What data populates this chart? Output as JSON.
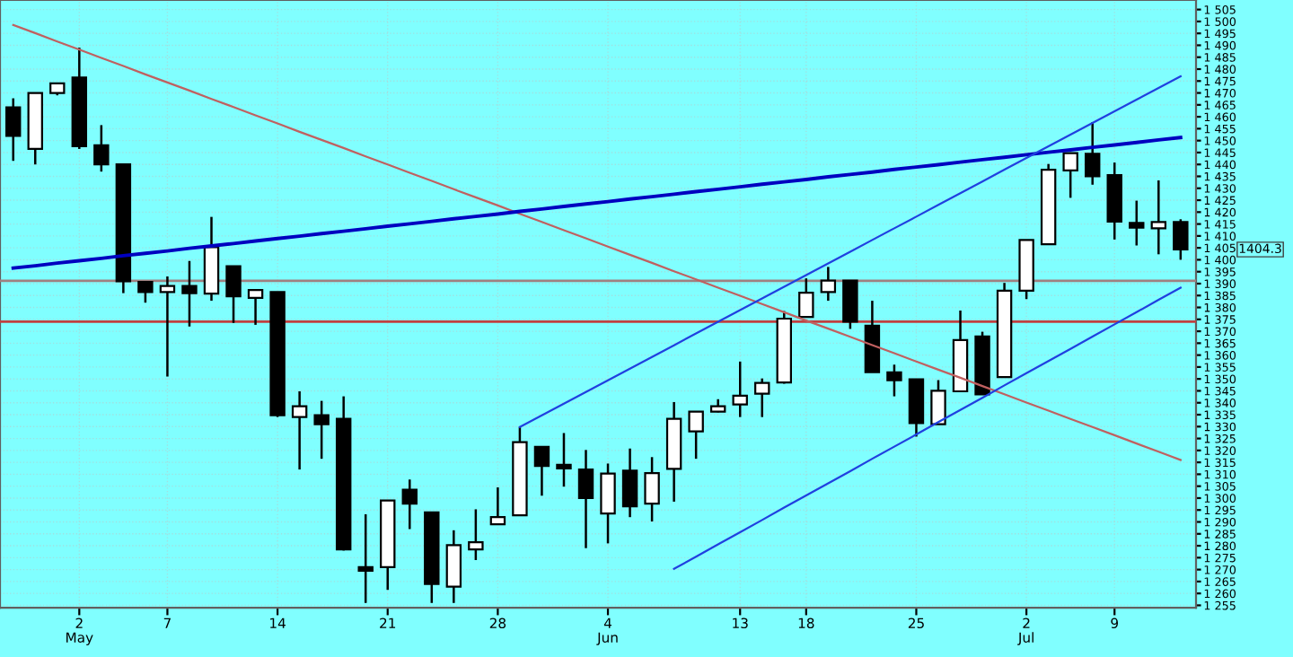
{
  "chart_data": {
    "type": "candlestick",
    "categories": [
      null,
      null,
      null,
      "2\nMay",
      null,
      null,
      null,
      "7",
      null,
      null,
      null,
      null,
      "14",
      null,
      null,
      null,
      null,
      "21",
      null,
      null,
      null,
      null,
      "28",
      null,
      null,
      null,
      null,
      "4\nJun",
      null,
      null,
      null,
      null,
      null,
      "13",
      null,
      null,
      "18",
      null,
      null,
      null,
      null,
      "25",
      null,
      null,
      null,
      null,
      "2\nJul",
      null,
      null,
      null,
      "9",
      null,
      null,
      null
    ],
    "ohlc": [
      [
        1464,
        1467.75,
        1441.5,
        1452
      ],
      [
        1446.5,
        1470,
        1440,
        1470
      ],
      [
        1470,
        1474,
        1469,
        1474
      ],
      [
        1476.5,
        1489,
        1446.5,
        1447.7
      ],
      [
        1448,
        1456.5,
        1437,
        1440
      ],
      [
        1440,
        1440,
        1386,
        1391
      ],
      [
        1390.7,
        1391,
        1382,
        1386.5
      ],
      [
        1386.5,
        1393,
        1351,
        1389
      ],
      [
        1389,
        1399.5,
        1372,
        1386
      ],
      [
        1385.8,
        1418,
        1382.8,
        1405.3
      ],
      [
        1397.3,
        1397.3,
        1373.5,
        1384.7
      ],
      [
        1384,
        1387.5,
        1372.7,
        1387.3
      ],
      [
        1386.5,
        1386.5,
        1334,
        1334.8
      ],
      [
        1334,
        1344.8,
        1312,
        1338.5
      ],
      [
        1334.8,
        1340.8,
        1316.5,
        1331
      ],
      [
        1333.3,
        1342.7,
        1278,
        1278.5
      ],
      [
        1271,
        1293.2,
        1256,
        1269.5
      ],
      [
        1271,
        1299,
        1261.5,
        1299
      ],
      [
        1303.5,
        1307.8,
        1287,
        1297.7
      ],
      [
        1294,
        1294,
        1256,
        1264
      ],
      [
        1262.8,
        1286.5,
        1256,
        1280.3
      ],
      [
        1278.5,
        1295.3,
        1274,
        1281.5
      ],
      [
        1289,
        1304.5,
        1289,
        1292
      ],
      [
        1292.8,
        1329.8,
        1292.8,
        1323.5
      ],
      [
        1321.5,
        1321.5,
        1301,
        1313.5
      ],
      [
        1314,
        1327.3,
        1304.8,
        1312.5
      ],
      [
        1312,
        1320.2,
        1279,
        1300
      ],
      [
        1293.5,
        1314.5,
        1281,
        1310.3
      ],
      [
        1311.5,
        1320.8,
        1292,
        1296.5
      ],
      [
        1297.7,
        1317.2,
        1290.2,
        1310.5
      ],
      [
        1312.3,
        1340.3,
        1298.5,
        1333.3
      ],
      [
        1328,
        1336.3,
        1316.5,
        1336.3
      ],
      [
        1336.3,
        1341.5,
        1336,
        1338.5
      ],
      [
        1339.3,
        1357.3,
        1334,
        1343
      ],
      [
        1343.8,
        1350.2,
        1334,
        1348.3
      ],
      [
        1348.5,
        1378.5,
        1348,
        1375.3
      ],
      [
        1376,
        1392.2,
        1376,
        1386.2
      ],
      [
        1386.5,
        1397,
        1382.8,
        1391.3
      ],
      [
        1391.3,
        1391.3,
        1371,
        1374
      ],
      [
        1372.3,
        1382.8,
        1352.8,
        1352.8
      ],
      [
        1352.8,
        1356,
        1342.7,
        1349.5
      ],
      [
        1349.8,
        1349.8,
        1325.8,
        1331.5
      ],
      [
        1331,
        1349.5,
        1331,
        1345
      ],
      [
        1344.8,
        1378.7,
        1344.8,
        1366.3
      ],
      [
        1367.8,
        1369.8,
        1343.5,
        1343.5
      ],
      [
        1350.8,
        1390.3,
        1350.8,
        1387
      ],
      [
        1387,
        1408.3,
        1383.5,
        1408.3
      ],
      [
        1406.5,
        1440.2,
        1406.5,
        1437.8
      ],
      [
        1437.5,
        1445,
        1426,
        1444.7
      ],
      [
        1444.5,
        1457.8,
        1431.5,
        1435
      ],
      [
        1435.5,
        1440.8,
        1408.5,
        1416
      ],
      [
        1415.5,
        1424.8,
        1406,
        1413.5
      ],
      [
        1413.2,
        1433.3,
        1402.3,
        1415.8
      ],
      [
        1415.8,
        1417,
        1400,
        1404.3
      ]
    ],
    "series": [
      {
        "type": "line",
        "color": "#c06060",
        "values": [
          1498.5,
          1495.1,
          1491.6,
          1488.2,
          1484.7,
          1481.3,
          1477.8,
          1474.4,
          1471.0,
          1467.5,
          1464.1,
          1460.6,
          1457.2,
          1453.7,
          1450.3,
          1446.9,
          1443.4,
          1440.0,
          1436.5,
          1433.1,
          1429.6,
          1426.2,
          1422.8,
          1419.3,
          1415.9,
          1412.4,
          1409.0,
          1405.5,
          1402.1,
          1398.7,
          1395.2,
          1391.8,
          1388.3,
          1384.9,
          1381.4,
          1378.0,
          1374.5,
          1371.1,
          1367.7,
          1364.2,
          1360.8,
          1357.3,
          1353.9,
          1350.5,
          1347.0,
          1343.6,
          1340.1,
          1336.7,
          1333.2,
          1329.8,
          1326.4,
          1322.9,
          1319.5,
          1316.0
        ]
      },
      {
        "type": "line",
        "color": "#0000c0",
        "values": [
          1396.5,
          1397.5,
          1398.6,
          1399.6,
          1400.6,
          1401.7,
          1402.7,
          1403.7,
          1404.8,
          1405.8,
          1406.8,
          1407.9,
          1408.9,
          1409.9,
          1411.0,
          1412.0,
          1413.0,
          1414.1,
          1415.1,
          1416.1,
          1417.2,
          1418.2,
          1419.2,
          1420.3,
          1421.3,
          1422.4,
          1423.4,
          1424.4,
          1425.5,
          1426.5,
          1427.5,
          1428.6,
          1429.6,
          1430.6,
          1431.7,
          1432.7,
          1433.7,
          1434.8,
          1435.8,
          1436.8,
          1437.9,
          1438.9,
          1439.9,
          1441.0,
          1442.0,
          1443.0,
          1444.1,
          1445.1,
          1446.1,
          1447.2,
          1448.2,
          1449.2,
          1450.3,
          1451.3
        ]
      },
      {
        "type": "line",
        "color": "#2040e0",
        "values": [
          null,
          null,
          null,
          null,
          null,
          null,
          null,
          null,
          null,
          null,
          null,
          null,
          null,
          null,
          null,
          null,
          null,
          null,
          null,
          null,
          null,
          null,
          null,
          1329.8,
          1334.7,
          1339.6,
          1344.5,
          1349.4,
          1354.3,
          1359.2,
          1364.1,
          1369.1,
          1374.0,
          1378.9,
          1383.8,
          1388.7,
          1393.6,
          1398.5,
          1403.4,
          1408.3,
          1413.2,
          1418.1,
          1423.0,
          1427.9,
          1432.8,
          1437.8,
          1442.7,
          1447.6,
          1452.5,
          1457.4,
          1462.3,
          1467.2,
          1472.1,
          1477.0
        ]
      },
      {
        "type": "line",
        "color": "#2040e0",
        "values": [
          null,
          null,
          null,
          null,
          null,
          null,
          null,
          null,
          null,
          null,
          null,
          null,
          null,
          null,
          null,
          null,
          null,
          null,
          null,
          null,
          null,
          null,
          null,
          null,
          null,
          null,
          null,
          null,
          null,
          null,
          1270.3,
          1275.4,
          1280.6,
          1285.7,
          1290.8,
          1296.0,
          1301.1,
          1306.2,
          1311.3,
          1316.5,
          1321.6,
          1326.7,
          1331.9,
          1337.0,
          1342.1,
          1347.3,
          1352.4,
          1357.5,
          1362.6,
          1367.8,
          1372.9,
          1378.0,
          1383.2,
          1388.3
        ]
      }
    ],
    "ref_lines": [
      {
        "axis": "y",
        "value": 1391.2,
        "color": "#a08080"
      },
      {
        "axis": "y",
        "value": 1374,
        "color": "#c04040"
      }
    ],
    "annotations": [
      "1404.3"
    ],
    "ylim": [
      1254,
      1509
    ],
    "yticks": [
      {
        "value": 1255,
        "label": "1 255"
      },
      {
        "value": 1260,
        "label": "1 260"
      },
      {
        "value": 1265,
        "label": "1 265"
      },
      {
        "value": 1270,
        "label": "1 270"
      },
      {
        "value": 1275,
        "label": "1 275"
      },
      {
        "value": 1280,
        "label": "1 280"
      },
      {
        "value": 1285,
        "label": "1 285"
      },
      {
        "value": 1290,
        "label": "1 290"
      },
      {
        "value": 1295,
        "label": "1 295"
      },
      {
        "value": 1300,
        "label": "1 300"
      },
      {
        "value": 1305,
        "label": "1 305"
      },
      {
        "value": 1310,
        "label": "1 310"
      },
      {
        "value": 1315,
        "label": "1 315"
      },
      {
        "value": 1320,
        "label": "1 320"
      },
      {
        "value": 1325,
        "label": "1 325"
      },
      {
        "value": 1330,
        "label": "1 330"
      },
      {
        "value": 1335,
        "label": "1 335"
      },
      {
        "value": 1340,
        "label": "1 340"
      },
      {
        "value": 1345,
        "label": "1 345"
      },
      {
        "value": 1350,
        "label": "1 350"
      },
      {
        "value": 1355,
        "label": "1 355"
      },
      {
        "value": 1360,
        "label": "1 360"
      },
      {
        "value": 1365,
        "label": "1 365"
      },
      {
        "value": 1370,
        "label": "1 370"
      },
      {
        "value": 1375,
        "label": "1 375"
      },
      {
        "value": 1380,
        "label": "1 380"
      },
      {
        "value": 1385,
        "label": "1 385"
      },
      {
        "value": 1390,
        "label": "1 390"
      },
      {
        "value": 1395,
        "label": "1 395"
      },
      {
        "value": 1400,
        "label": "1 400"
      },
      {
        "value": 1405,
        "label": "1 405"
      },
      {
        "value": 1410,
        "label": "1 410"
      },
      {
        "value": 1415,
        "label": "1 415"
      },
      {
        "value": 1420,
        "label": "1 420"
      },
      {
        "value": 1425,
        "label": "1 425"
      },
      {
        "value": 1430,
        "label": "1 430"
      },
      {
        "value": 1435,
        "label": "1 435"
      },
      {
        "value": 1440,
        "label": "1 440"
      },
      {
        "value": 1445,
        "label": "1 445"
      },
      {
        "value": 1450,
        "label": "1 450"
      },
      {
        "value": 1455,
        "label": "1 455"
      },
      {
        "value": 1460,
        "label": "1 460"
      },
      {
        "value": 1465,
        "label": "1 465"
      },
      {
        "value": 1470,
        "label": "1 470"
      },
      {
        "value": 1475,
        "label": "1 475"
      },
      {
        "value": 1480,
        "label": "1 480"
      },
      {
        "value": 1485,
        "label": "1 485"
      },
      {
        "value": 1490,
        "label": "1 490"
      },
      {
        "value": 1495,
        "label": "1 495"
      },
      {
        "value": 1500,
        "label": "1 500"
      },
      {
        "value": 1505,
        "label": "1 505"
      }
    ],
    "grid": true
  }
}
